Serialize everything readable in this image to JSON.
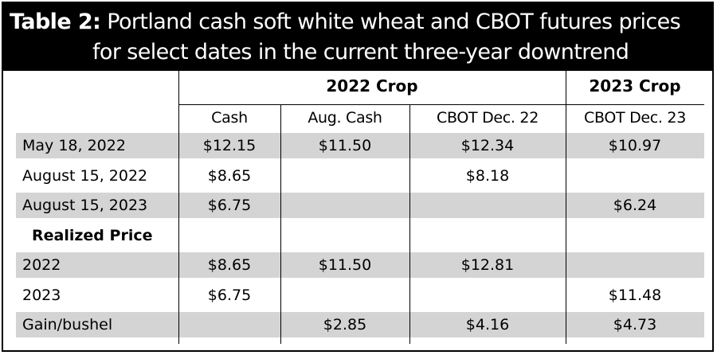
{
  "title": {
    "label": "Table 2:",
    "line1": " Portland cash soft white wheat and CBOT futures prices",
    "line2": "for select dates in the current three-year downtrend"
  },
  "table": {
    "group_headers": [
      "2022 Crop",
      "2023 Crop"
    ],
    "column_headers": [
      "Cash",
      "Aug. Cash",
      "CBOT Dec. 22",
      "CBOT Dec. 23"
    ],
    "rows": [
      {
        "label": "May 18, 2022",
        "values": [
          "$12.15",
          "$11.50",
          "$12.34",
          "$10.97"
        ],
        "shaded": true,
        "bold": false
      },
      {
        "label": "August 15, 2022",
        "values": [
          "$8.65",
          "",
          "$8.18",
          ""
        ],
        "shaded": false,
        "bold": false
      },
      {
        "label": "August 15, 2023",
        "values": [
          "$6.75",
          "",
          "",
          "$6.24"
        ],
        "shaded": true,
        "bold": false
      },
      {
        "label": "Realized Price",
        "values": [
          "",
          "",
          "",
          ""
        ],
        "shaded": false,
        "bold": true
      },
      {
        "label": "2022",
        "values": [
          "$8.65",
          "$11.50",
          "$12.81",
          ""
        ],
        "shaded": true,
        "bold": false
      },
      {
        "label": "2023",
        "values": [
          "$6.75",
          "",
          "",
          "$11.48"
        ],
        "shaded": false,
        "bold": false
      },
      {
        "label": "Gain/bushel",
        "values": [
          "",
          "$2.85",
          "$4.16",
          "$4.73"
        ],
        "shaded": true,
        "bold": false
      }
    ]
  },
  "colors": {
    "title_background": "#000000",
    "title_text": "#ffffff",
    "row_shade": "#d4d4d4"
  }
}
